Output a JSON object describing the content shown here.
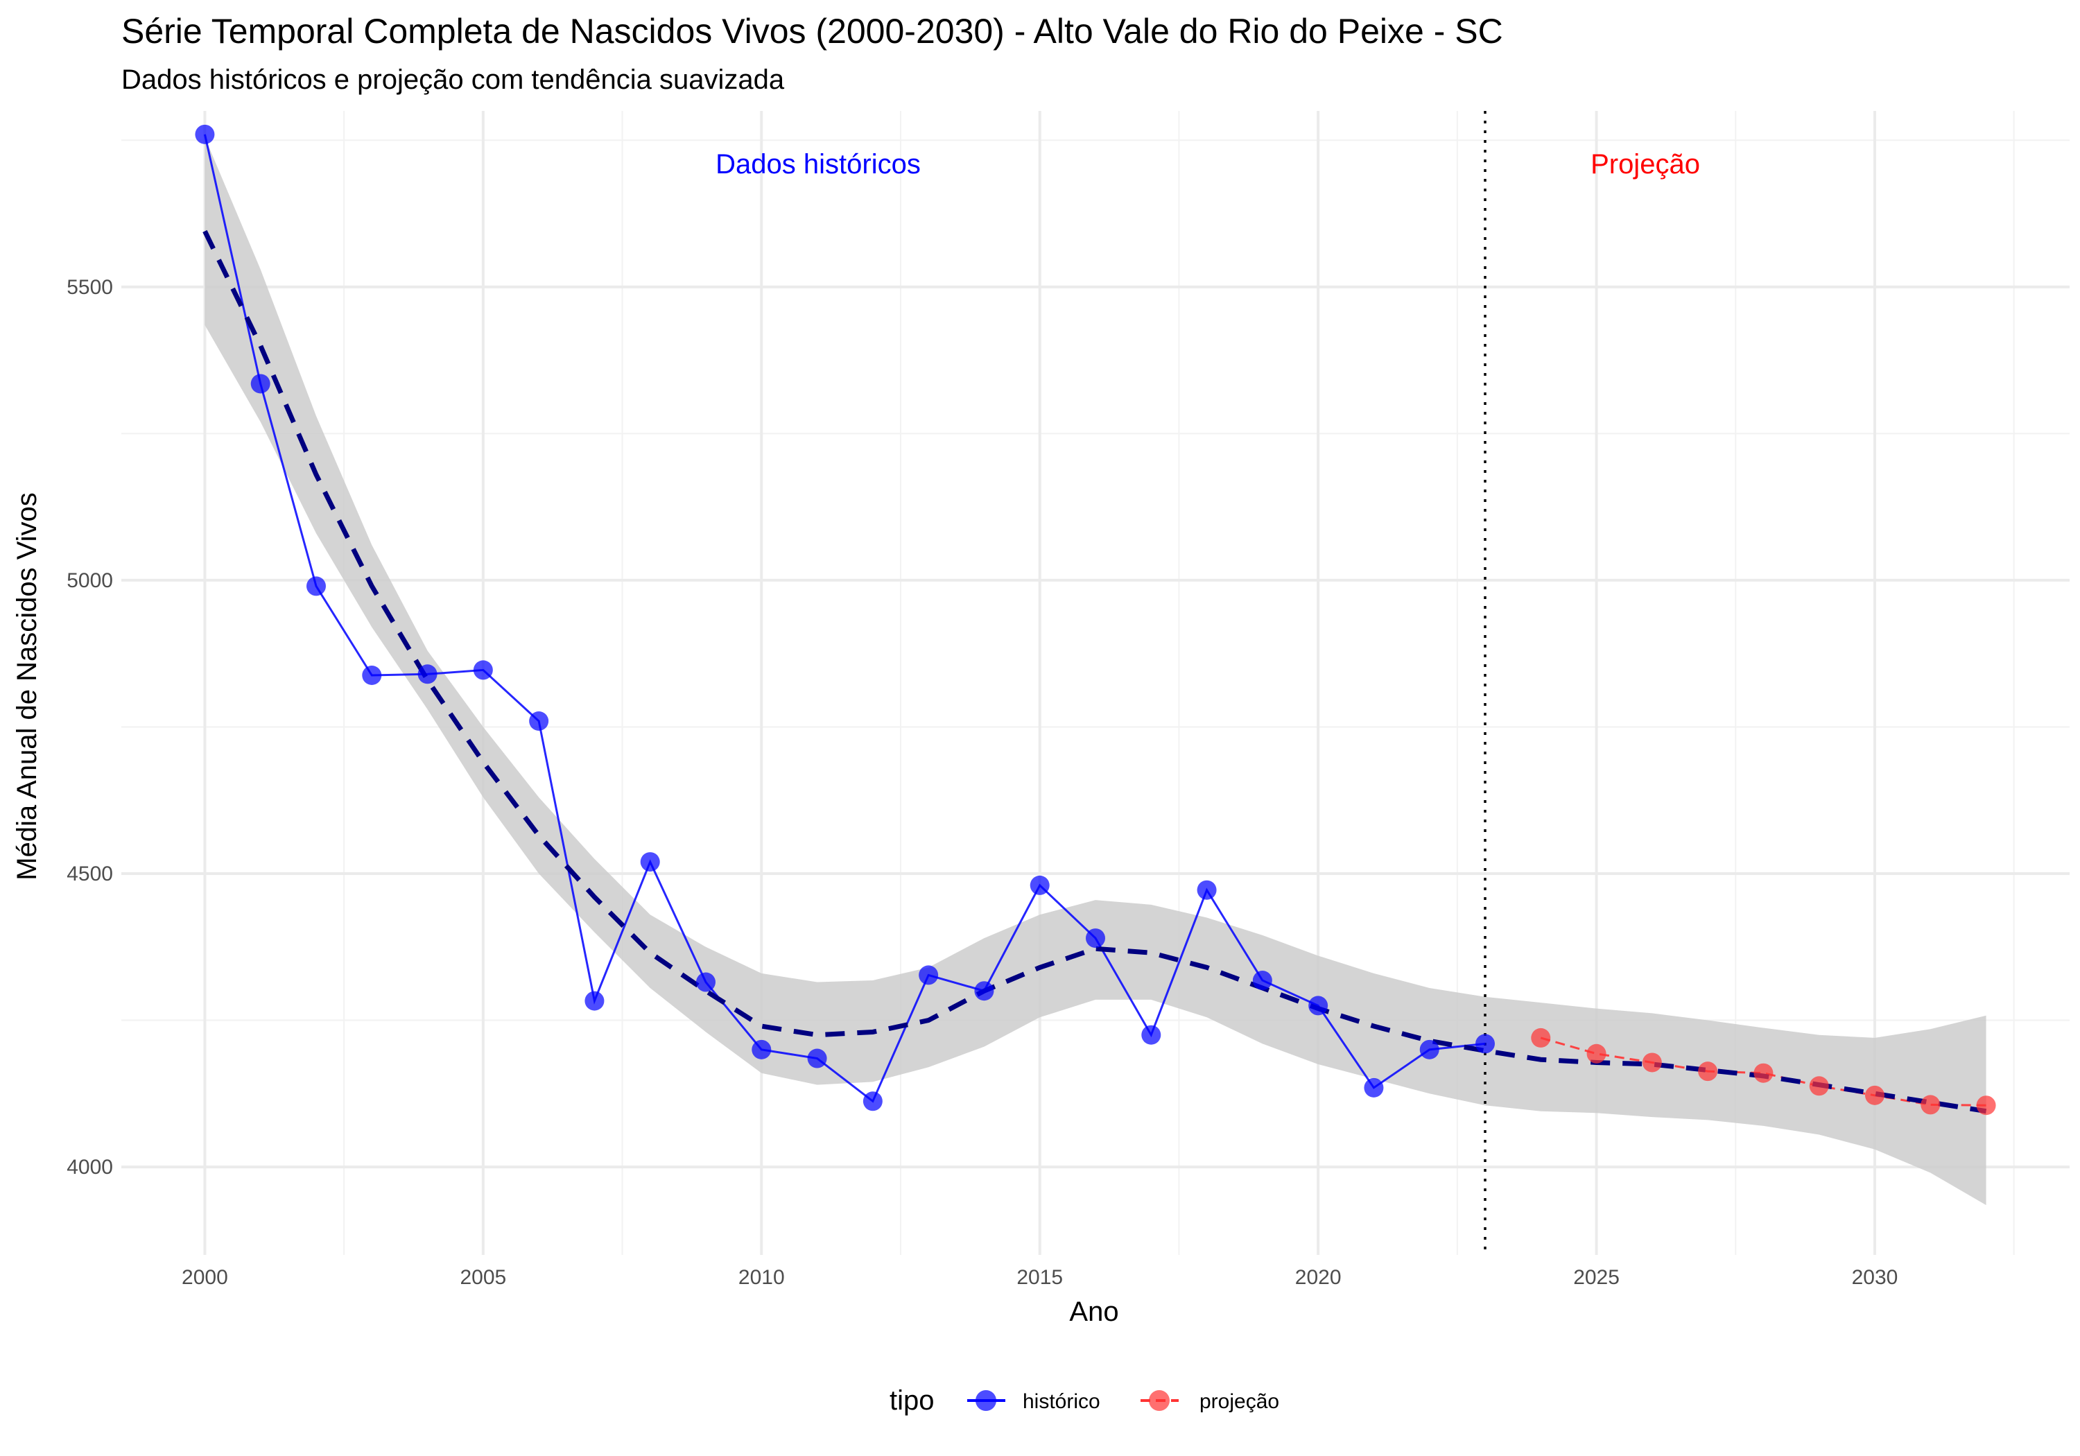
{
  "chart_data": {
    "type": "line",
    "title": "Série Temporal Completa de Nascidos Vivos (2000-2030) -  Alto Vale do Rio do Peixe - SC",
    "subtitle": "Dados históricos e projeção com tendência suavizada",
    "xlabel": "Ano",
    "ylabel": "Média Anual de Nascidos Vivos",
    "xlim": [
      1998.5,
      2033.5
    ],
    "ylim": [
      3850,
      5800
    ],
    "x_ticks": [
      2000,
      2005,
      2010,
      2015,
      2020,
      2025,
      2030
    ],
    "y_ticks": [
      4000,
      4500,
      5000,
      5500
    ],
    "grid": true,
    "legend": {
      "title": "tipo",
      "position": "bottom",
      "entries": [
        "histórico",
        "projeção"
      ]
    },
    "annotations": {
      "historic_label": "Dados históricos",
      "projection_label": "Projeção",
      "divider_x": 2023
    },
    "colors": {
      "historico": "#0000ff",
      "projecao": "#ff3333",
      "trend": "#000080",
      "ribbon": "#cccccc"
    },
    "series": [
      {
        "name": "histórico",
        "x": [
          2000,
          2001,
          2002,
          2003,
          2004,
          2005,
          2006,
          2007,
          2008,
          2009,
          2010,
          2011,
          2012,
          2013,
          2014,
          2015,
          2016,
          2017,
          2018,
          2019,
          2020,
          2021,
          2022,
          2023
        ],
        "values": [
          5760,
          5335,
          4990,
          4838,
          4840,
          4847,
          4760,
          4283,
          4520,
          4315,
          4200,
          4185,
          4112,
          4327,
          4300,
          4480,
          4390,
          4225,
          4472,
          4318,
          4275,
          4135,
          4200,
          4210
        ]
      },
      {
        "name": "projeção",
        "x": [
          2024,
          2025,
          2026,
          2027,
          2028,
          2029,
          2030,
          2031,
          2032
        ],
        "values": [
          4220,
          4193,
          4178,
          4163,
          4160,
          4138,
          4122,
          4106,
          4105
        ]
      }
    ],
    "trend": {
      "x": [
        2000,
        2001,
        2002,
        2003,
        2004,
        2005,
        2006,
        2007,
        2008,
        2009,
        2010,
        2011,
        2012,
        2013,
        2014,
        2015,
        2016,
        2017,
        2018,
        2019,
        2020,
        2021,
        2022,
        2023,
        2024,
        2025,
        2026,
        2027,
        2028,
        2029,
        2030,
        2031,
        2032
      ],
      "values": [
        5595,
        5400,
        5180,
        4990,
        4830,
        4690,
        4565,
        4460,
        4365,
        4300,
        4240,
        4225,
        4230,
        4250,
        4300,
        4340,
        4372,
        4365,
        4340,
        4305,
        4270,
        4240,
        4215,
        4198,
        4183,
        4178,
        4175,
        4165,
        4155,
        4140,
        4125,
        4110,
        4095
      ],
      "lower": [
        5435,
        5270,
        5080,
        4920,
        4780,
        4630,
        4500,
        4400,
        4305,
        4230,
        4160,
        4140,
        4145,
        4170,
        4205,
        4255,
        4285,
        4285,
        4255,
        4210,
        4175,
        4150,
        4125,
        4105,
        4095,
        4092,
        4085,
        4080,
        4070,
        4055,
        4030,
        3990,
        3935
      ],
      "upper": [
        5755,
        5530,
        5280,
        5060,
        4880,
        4750,
        4630,
        4525,
        4430,
        4375,
        4330,
        4315,
        4318,
        4340,
        4390,
        4430,
        4455,
        4447,
        4425,
        4395,
        4360,
        4330,
        4305,
        4290,
        4280,
        4270,
        4262,
        4250,
        4237,
        4225,
        4220,
        4235,
        4258
      ]
    }
  }
}
